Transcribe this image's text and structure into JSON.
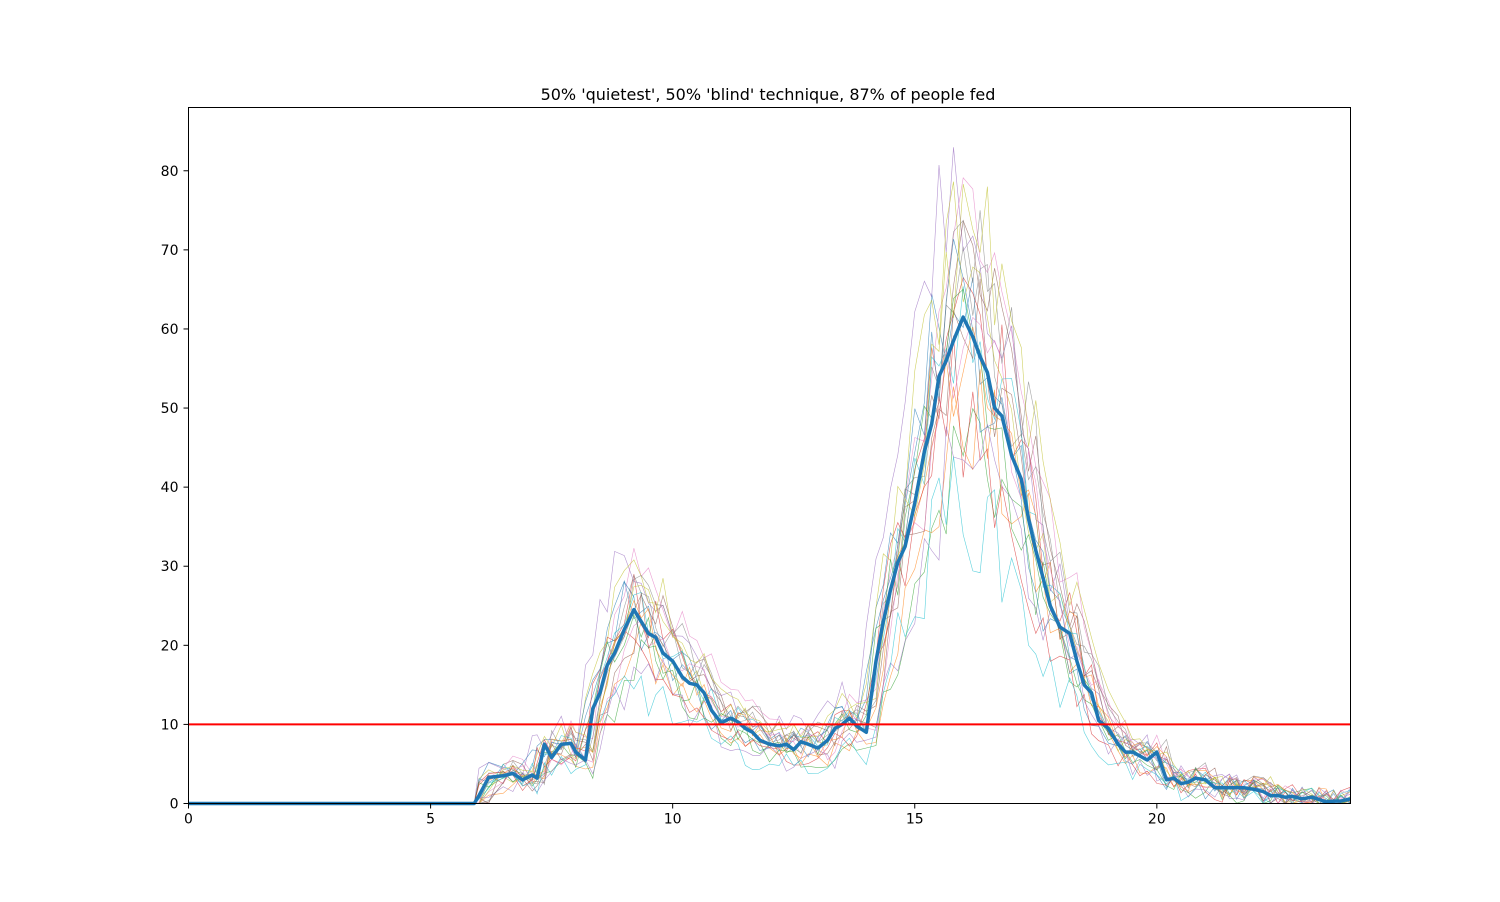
{
  "chart_data": {
    "type": "line",
    "title": "50% 'quietest', 50% 'blind' technique, 87% of people fed",
    "xlabel": "",
    "ylabel": "",
    "xlim": [
      0,
      24
    ],
    "ylim": [
      0,
      88
    ],
    "xticks": [
      0,
      5,
      10,
      15,
      20
    ],
    "yticks": [
      0,
      10,
      20,
      30,
      40,
      50,
      60,
      70,
      80
    ],
    "grid": false,
    "threshold": {
      "y": 10,
      "color": "#ff0000"
    },
    "mean_series": {
      "color": "#1f77b4",
      "x": [
        0,
        0.5,
        1,
        1.5,
        2,
        2.5,
        3,
        3.5,
        4,
        4.5,
        5,
        5.5,
        5.9,
        6,
        6.2,
        6.5,
        6.7,
        6.9,
        7.1,
        7.2,
        7.35,
        7.5,
        7.7,
        7.9,
        8,
        8.2,
        8.35,
        8.5,
        8.65,
        8.8,
        9,
        9.2,
        9.35,
        9.5,
        9.65,
        9.8,
        10,
        10.2,
        10.35,
        10.5,
        10.65,
        10.8,
        11,
        11.2,
        11.35,
        11.5,
        11.65,
        11.8,
        12,
        12.2,
        12.35,
        12.5,
        12.65,
        12.8,
        13,
        13.2,
        13.35,
        13.5,
        13.65,
        13.8,
        14,
        14.2,
        14.35,
        14.5,
        14.65,
        14.8,
        15,
        15.2,
        15.35,
        15.5,
        15.65,
        15.8,
        16,
        16.2,
        16.35,
        16.5,
        16.65,
        16.8,
        17,
        17.2,
        17.35,
        17.5,
        17.65,
        17.8,
        18,
        18.2,
        18.35,
        18.5,
        18.65,
        18.8,
        19,
        19.2,
        19.35,
        19.5,
        19.65,
        19.8,
        20,
        20.2,
        20.35,
        20.5,
        20.65,
        20.8,
        21,
        21.2,
        21.35,
        21.5,
        21.65,
        21.8,
        22,
        22.2,
        22.35,
        22.5,
        22.65,
        22.8,
        23,
        23.2,
        23.35,
        23.5,
        23.65,
        23.8,
        24
      ],
      "y": [
        0,
        0,
        0,
        0,
        0,
        0,
        0,
        0,
        0,
        0,
        0,
        0,
        0,
        1,
        3.3,
        3.5,
        3.8,
        3,
        3.6,
        3.2,
        7.5,
        5.8,
        7.5,
        7.6,
        6.5,
        5.5,
        12,
        14,
        17.5,
        19,
        22,
        24.5,
        23,
        21.5,
        21,
        19,
        18,
        16,
        15.2,
        15,
        14,
        11.8,
        10.2,
        10.8,
        10.3,
        9.5,
        9,
        8,
        7.5,
        7.3,
        7.5,
        6.8,
        7.8,
        7.5,
        7,
        8,
        9.5,
        10,
        10.8,
        9.8,
        9,
        18,
        23,
        27,
        30.5,
        32.5,
        38,
        44.5,
        48,
        54,
        56,
        58.5,
        61.5,
        59,
        56.5,
        54.5,
        50,
        49,
        44,
        41,
        36,
        32,
        28.5,
        25,
        22.3,
        21.5,
        18,
        15,
        14,
        10.5,
        9.5,
        7.5,
        6.5,
        6.5,
        6,
        5.5,
        6.5,
        3,
        3.2,
        2.5,
        2.7,
        3.2,
        3,
        2,
        2,
        2,
        2,
        2,
        1.8,
        1.5,
        1,
        1,
        0.8,
        0.9,
        0.6,
        0.8,
        0.5,
        0.2,
        0.3,
        0.3,
        0.6
      ]
    },
    "runs_count": 20,
    "run_colors": [
      "#1f77b4",
      "#ff7f0e",
      "#2ca02c",
      "#d62728",
      "#9467bd",
      "#8c564b",
      "#e377c2",
      "#7f7f7f",
      "#bcbd22",
      "#17becf"
    ]
  }
}
